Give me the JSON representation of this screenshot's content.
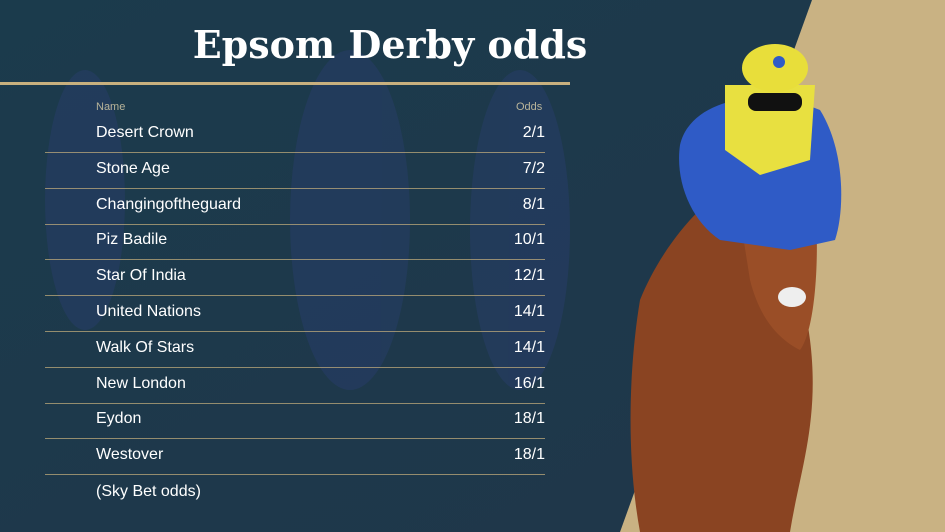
{
  "title": "Epsom Derby odds",
  "columns": {
    "name": "Name",
    "odds": "Odds"
  },
  "rows": [
    {
      "name": "Desert Crown",
      "odds": "2/1"
    },
    {
      "name": "Stone Age",
      "odds": "7/2"
    },
    {
      "name": "Changingoftheguard",
      "odds": "8/1"
    },
    {
      "name": "Piz Badile",
      "odds": "10/1"
    },
    {
      "name": "Star Of India",
      "odds": "12/1"
    },
    {
      "name": "United Nations",
      "odds": "14/1"
    },
    {
      "name": "Walk Of Stars",
      "odds": "14/1"
    },
    {
      "name": "New London",
      "odds": "16/1"
    },
    {
      "name": "Eydon",
      "odds": "18/1"
    },
    {
      "name": "Westover",
      "odds": "18/1"
    }
  ],
  "footnote": "(Sky Bet odds)",
  "colors": {
    "background": "#1d3a4a",
    "accent_gold": "#c8b07e",
    "text": "#ffffff"
  }
}
